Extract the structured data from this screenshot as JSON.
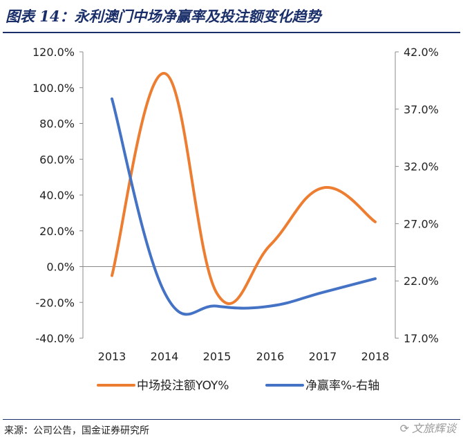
{
  "page": {
    "title": "图表 14：永利澳门中场净赢率及投注额变化趋势",
    "source": "来源：公司公告，国金证券研究所",
    "watermark": "文旅辉谈"
  },
  "colors": {
    "series1": "#ED7D31",
    "series2": "#4472C4",
    "axis": "#888888"
  },
  "chart_data": {
    "type": "line",
    "title": "",
    "x": [
      "2013",
      "2014",
      "2015",
      "2016",
      "2017",
      "2018"
    ],
    "y_left": {
      "min": -40,
      "max": 120,
      "step": 20,
      "ticks": [
        "-40.0%",
        "-20.0%",
        "0.0%",
        "20.0%",
        "40.0%",
        "60.0%",
        "80.0%",
        "100.0%",
        "120.0%"
      ]
    },
    "y_right": {
      "min": 17,
      "max": 42,
      "step": 5,
      "ticks": [
        "17.0%",
        "22.0%",
        "27.0%",
        "32.0%",
        "37.0%",
        "42.0%"
      ]
    },
    "series": [
      {
        "name": "中场投注额YOY%",
        "axis": "left",
        "values": [
          -5,
          108,
          -15,
          12,
          44,
          25
        ]
      },
      {
        "name": "净赢率%-右轴",
        "axis": "right",
        "values": [
          37.9,
          21.0,
          19.8,
          19.8,
          21.0,
          22.2
        ]
      }
    ],
    "legend_position": "bottom",
    "grid": false
  }
}
